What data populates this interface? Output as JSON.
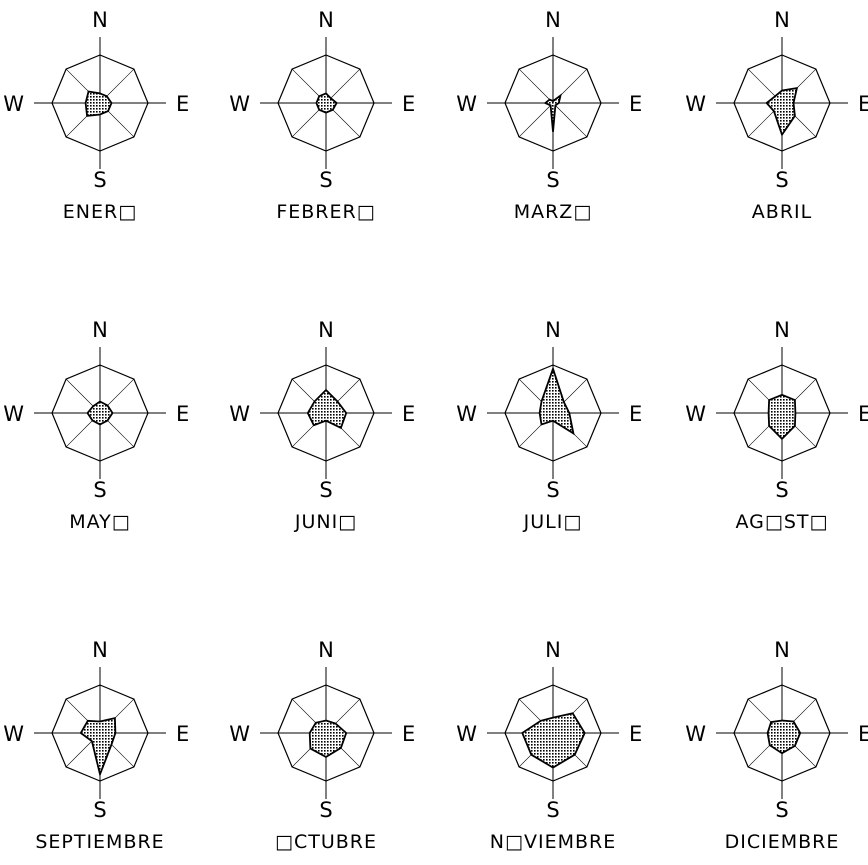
{
  "chart_data": [
    {
      "type": "radar",
      "title": "ENER□",
      "axes": [
        "N",
        "NE",
        "E",
        "SE",
        "S",
        "SW",
        "W",
        "NW"
      ],
      "values": [
        0.2,
        0.2,
        0.24,
        0.24,
        0.24,
        0.38,
        0.3,
        0.34
      ],
      "ylim": [
        0,
        1
      ]
    },
    {
      "type": "radar",
      "title": "FEBRER□",
      "axes": [
        "N",
        "NE",
        "E",
        "SE",
        "S",
        "SW",
        "W",
        "NW"
      ],
      "values": [
        0.2,
        0.14,
        0.22,
        0.2,
        0.2,
        0.2,
        0.2,
        0.2
      ],
      "ylim": [
        0,
        1
      ]
    },
    {
      "type": "radar",
      "title": "MARZ□",
      "axes": [
        "N",
        "NE",
        "E",
        "SE",
        "S",
        "SW",
        "W",
        "NW"
      ],
      "values": [
        0.04,
        0.22,
        0.12,
        0.07,
        0.6,
        0.07,
        0.16,
        0.1
      ],
      "ylim": [
        0,
        1
      ]
    },
    {
      "type": "radar",
      "title": "ABRIL",
      "axes": [
        "N",
        "NE",
        "E",
        "SE",
        "S",
        "SW",
        "W",
        "NW"
      ],
      "values": [
        0.26,
        0.44,
        0.24,
        0.38,
        0.66,
        0.24,
        0.32,
        0.2
      ],
      "ylim": [
        0,
        1
      ]
    },
    {
      "type": "radar",
      "title": "MAY□",
      "axes": [
        "N",
        "NE",
        "E",
        "SE",
        "S",
        "SW",
        "W",
        "NW"
      ],
      "values": [
        0.24,
        0.22,
        0.26,
        0.22,
        0.24,
        0.22,
        0.26,
        0.2
      ],
      "ylim": [
        0,
        1
      ]
    },
    {
      "type": "radar",
      "title": "JUNI□",
      "axes": [
        "N",
        "NE",
        "E",
        "SE",
        "S",
        "SW",
        "W",
        "NW"
      ],
      "values": [
        0.48,
        0.34,
        0.42,
        0.44,
        0.16,
        0.36,
        0.38,
        0.34
      ],
      "ylim": [
        0,
        1
      ]
    },
    {
      "type": "radar",
      "title": "JULI□",
      "axes": [
        "N",
        "NE",
        "E",
        "SE",
        "S",
        "SW",
        "W",
        "NW"
      ],
      "values": [
        0.92,
        0.32,
        0.34,
        0.6,
        0.16,
        0.34,
        0.28,
        0.34
      ],
      "ylim": [
        0,
        1
      ]
    },
    {
      "type": "radar",
      "title": "AG□ST□",
      "axes": [
        "N",
        "NE",
        "E",
        "SE",
        "S",
        "SW",
        "W",
        "NW"
      ],
      "values": [
        0.38,
        0.38,
        0.28,
        0.38,
        0.54,
        0.38,
        0.28,
        0.38
      ],
      "ylim": [
        0,
        1
      ]
    },
    {
      "type": "radar",
      "title": "SEPTIEMBRE",
      "axes": [
        "N",
        "NE",
        "E",
        "SE",
        "S",
        "SW",
        "W",
        "NW"
      ],
      "values": [
        0.24,
        0.44,
        0.32,
        0.34,
        0.86,
        0.24,
        0.4,
        0.36
      ],
      "ylim": [
        0,
        1
      ]
    },
    {
      "type": "radar",
      "title": "□CTUBRE",
      "axes": [
        "N",
        "NE",
        "E",
        "SE",
        "S",
        "SW",
        "W",
        "NW"
      ],
      "values": [
        0.26,
        0.28,
        0.42,
        0.44,
        0.5,
        0.46,
        0.34,
        0.3
      ],
      "ylim": [
        0,
        1
      ]
    },
    {
      "type": "radar",
      "title": "N□VIEMBRE",
      "axes": [
        "N",
        "NE",
        "E",
        "SE",
        "S",
        "SW",
        "W",
        "NW"
      ],
      "values": [
        0.32,
        0.58,
        0.66,
        0.64,
        0.72,
        0.64,
        0.64,
        0.36
      ],
      "ylim": [
        0,
        1
      ]
    },
    {
      "type": "radar",
      "title": "DICIEMBRE",
      "axes": [
        "N",
        "NE",
        "E",
        "SE",
        "S",
        "SW",
        "W",
        "NW"
      ],
      "values": [
        0.26,
        0.34,
        0.38,
        0.38,
        0.42,
        0.36,
        0.3,
        0.32
      ],
      "ylim": [
        0,
        1
      ]
    }
  ],
  "compass": {
    "north": "N",
    "east": "E",
    "south": "S",
    "west": "W"
  },
  "colors": {
    "line": "#000000",
    "grid": "#000000",
    "fill_dot": "#000000",
    "fill_bg": "#ffffff",
    "background": "#ffffff"
  }
}
